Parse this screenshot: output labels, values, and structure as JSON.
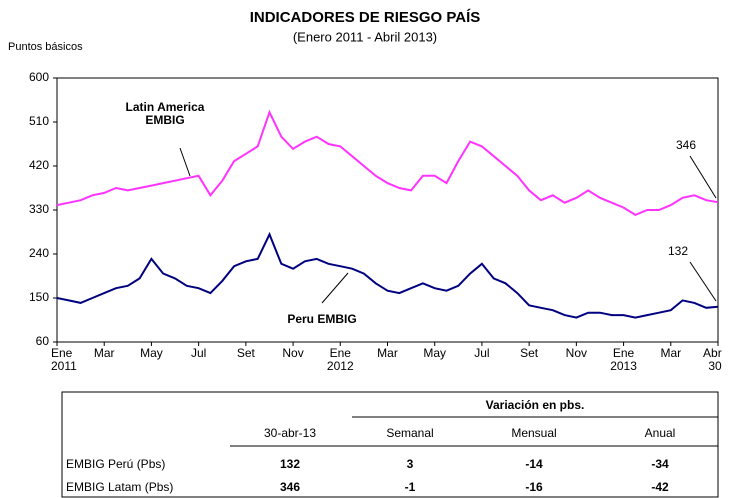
{
  "chart_data": {
    "type": "line",
    "title": "INDICADORES DE RIESGO PAÍS",
    "subtitle": "(Enero 2011 - Abril 2013)",
    "y_label": "Puntos básicos",
    "categories": [
      "Ene\n2011",
      null,
      null,
      null,
      "Mar",
      null,
      null,
      null,
      "May",
      null,
      null,
      null,
      "Jul",
      null,
      null,
      null,
      "Set",
      null,
      null,
      null,
      "Nov",
      null,
      null,
      null,
      "Ene\n2012",
      null,
      null,
      null,
      "Mar",
      null,
      null,
      null,
      "May",
      null,
      null,
      null,
      "Jul",
      null,
      null,
      null,
      "Set",
      null,
      null,
      null,
      "Nov",
      null,
      null,
      null,
      "Ene\n2013",
      null,
      null,
      null,
      "Mar",
      null,
      null,
      null,
      "Abr\n30"
    ],
    "series": [
      {
        "name": "Latin America\nEMBIG",
        "color": "#ff33ff",
        "values": [
          340,
          345,
          350,
          360,
          365,
          375,
          370,
          375,
          380,
          385,
          390,
          395,
          400,
          360,
          390,
          430,
          445,
          460,
          530,
          480,
          455,
          470,
          480,
          465,
          460,
          440,
          420,
          400,
          385,
          375,
          370,
          400,
          400,
          385,
          430,
          470,
          460,
          440,
          420,
          400,
          370,
          350,
          360,
          345,
          355,
          370,
          355,
          345,
          335,
          320,
          330,
          330,
          340,
          355,
          360,
          350,
          346
        ]
      },
      {
        "name": "Peru  EMBIG",
        "color": "#000080",
        "values": [
          150,
          145,
          140,
          150,
          160,
          170,
          175,
          190,
          230,
          200,
          190,
          175,
          170,
          160,
          185,
          215,
          225,
          230,
          280,
          220,
          210,
          225,
          230,
          220,
          215,
          210,
          200,
          180,
          165,
          160,
          170,
          180,
          170,
          165,
          175,
          200,
          220,
          190,
          180,
          160,
          135,
          130,
          125,
          115,
          110,
          120,
          120,
          115,
          115,
          110,
          115,
          120,
          125,
          145,
          140,
          130,
          132
        ]
      }
    ],
    "end_labels": [
      346,
      132
    ],
    "ylim": [
      60,
      600
    ],
    "yticks": [
      60,
      150,
      240,
      330,
      420,
      510,
      600
    ],
    "grid": false
  },
  "table": {
    "group_header": "Variación en pbs.",
    "columns": [
      "30-abr-13",
      "Semanal",
      "Mensual",
      "Anual"
    ],
    "rows": [
      {
        "label": "EMBIG Perú (Pbs)",
        "values": [
          132,
          3,
          -14,
          -34
        ]
      },
      {
        "label": "EMBIG Latam (Pbs)",
        "values": [
          346,
          -1,
          -16,
          -42
        ]
      }
    ]
  }
}
